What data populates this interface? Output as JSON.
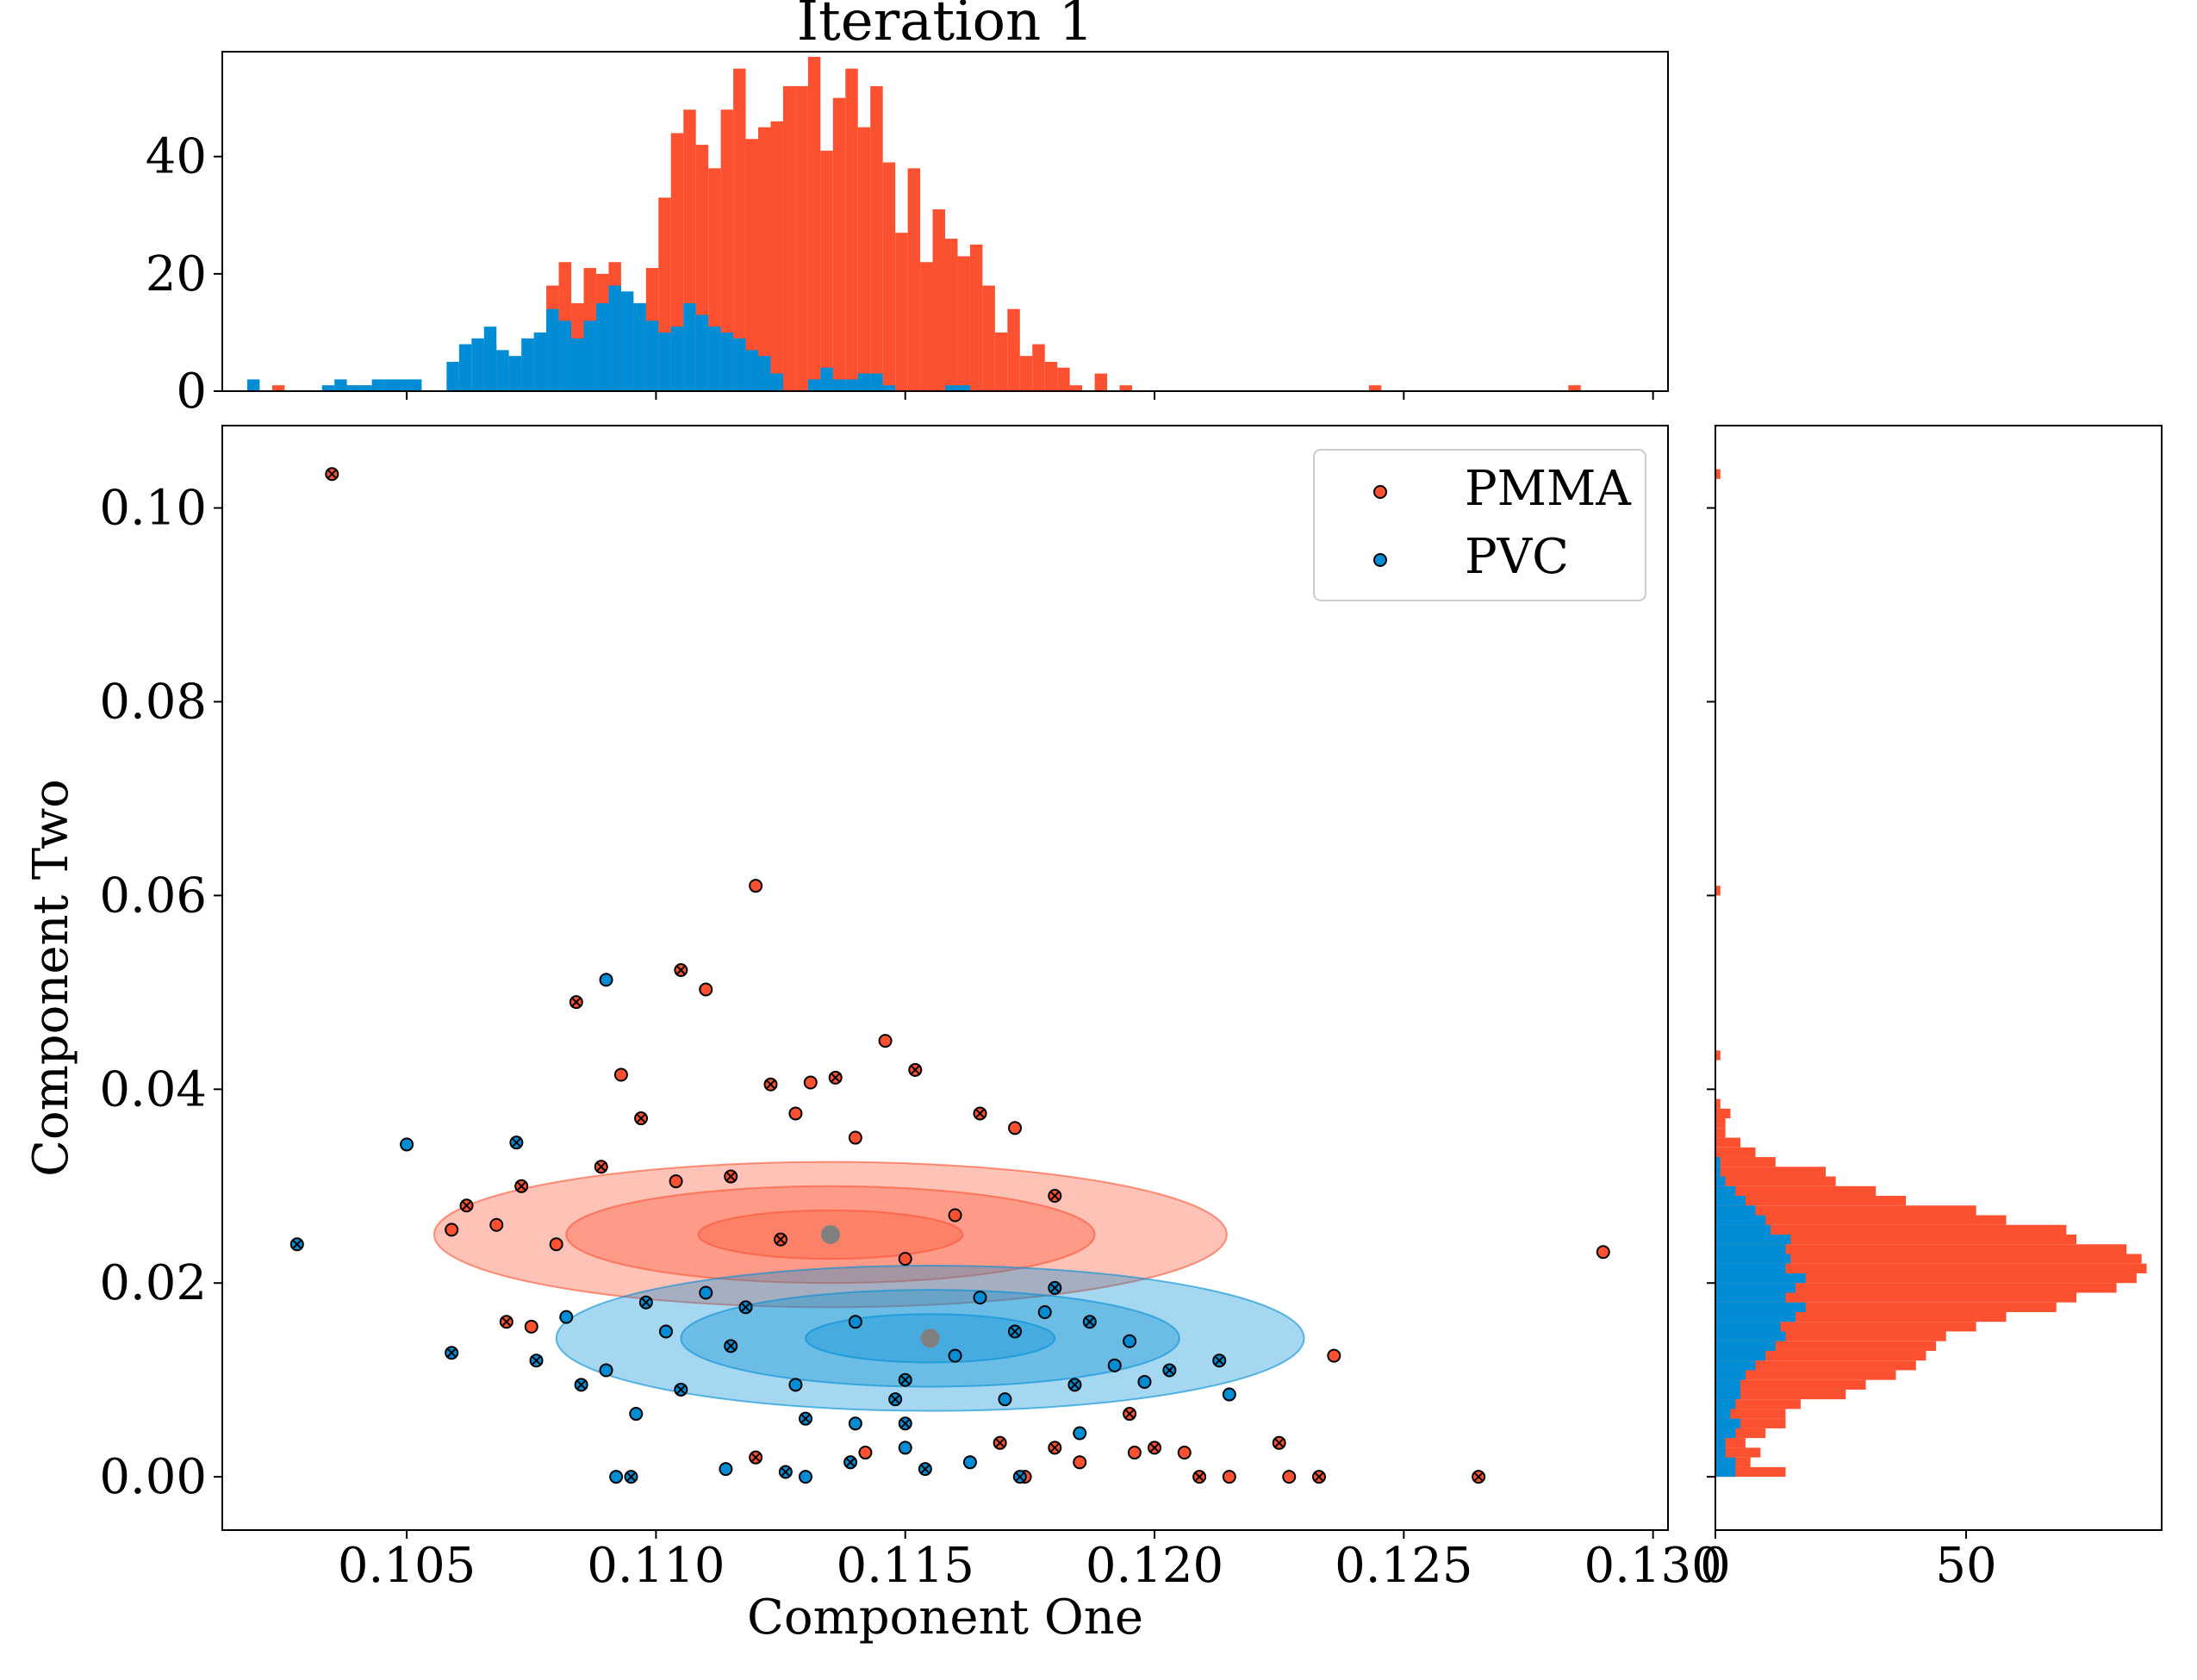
{
  "chart_data": {
    "type": "scatter",
    "title": "Iteration 1",
    "xlabel": "Component One",
    "ylabel": "Component Two",
    "xlim": [
      0.1013,
      0.1303
    ],
    "ylim": [
      -0.0055,
      0.1085
    ],
    "x_ticks": [
      0.105,
      0.11,
      0.115,
      0.12,
      0.125,
      0.13
    ],
    "x_tick_labels": [
      "0.105",
      "0.110",
      "0.115",
      "0.120",
      "0.125",
      "0.130"
    ],
    "y_ticks": [
      0.0,
      0.02,
      0.04,
      0.06,
      0.08,
      0.1
    ],
    "y_tick_labels": [
      "0.00",
      "0.02",
      "0.04",
      "0.06",
      "0.08",
      "0.10"
    ],
    "legend": {
      "placement": "top-right",
      "entries": [
        "PMMA",
        "PVC"
      ]
    },
    "colors": {
      "PMMA": "#fc5130",
      "PVC": "#008dd5",
      "centroid": "#808080"
    },
    "series": [
      {
        "name": "PMMA",
        "mean": [
          0.1135,
          0.025
        ],
        "std": [
          0.00265,
          0.0025
        ],
        "points": [
          [
            0.1035,
            0.1035
          ],
          [
            0.112,
            0.061
          ],
          [
            0.1105,
            0.0523
          ],
          [
            0.111,
            0.0503
          ],
          [
            0.1084,
            0.049
          ],
          [
            0.1146,
            0.045
          ],
          [
            0.1152,
            0.042
          ],
          [
            0.1093,
            0.0415
          ],
          [
            0.1123,
            0.0405
          ],
          [
            0.1131,
            0.0407
          ],
          [
            0.1136,
            0.0412
          ],
          [
            0.1128,
            0.0375
          ],
          [
            0.1097,
            0.037
          ],
          [
            0.129,
            0.0232
          ],
          [
            0.1265,
            0.0
          ],
          [
            0.1236,
            0.0125
          ],
          [
            0.1233,
            0.0
          ],
          [
            0.1227,
            0.0
          ],
          [
            0.1225,
            0.0035
          ],
          [
            0.1215,
            0.0
          ],
          [
            0.1209,
            0.0
          ],
          [
            0.1206,
            0.0025
          ],
          [
            0.12,
            0.003
          ],
          [
            0.1196,
            0.0025
          ],
          [
            0.1195,
            0.0065
          ],
          [
            0.1185,
            0.0015
          ],
          [
            0.118,
            0.003
          ],
          [
            0.1174,
            0.0
          ],
          [
            0.1169,
            0.0035
          ],
          [
            0.1142,
            0.0025
          ],
          [
            0.112,
            0.002
          ],
          [
            0.1075,
            0.0155
          ],
          [
            0.107,
            0.016
          ],
          [
            0.1068,
            0.026
          ],
          [
            0.1062,
            0.028
          ],
          [
            0.1059,
            0.0255
          ],
          [
            0.1073,
            0.03
          ],
          [
            0.108,
            0.024
          ],
          [
            0.1089,
            0.032
          ],
          [
            0.1104,
            0.0305
          ],
          [
            0.1115,
            0.031
          ],
          [
            0.116,
            0.027
          ],
          [
            0.1165,
            0.0375
          ],
          [
            0.1172,
            0.036
          ],
          [
            0.118,
            0.029
          ],
          [
            0.115,
            0.0225
          ],
          [
            0.1125,
            0.0245
          ],
          [
            0.114,
            0.035
          ]
        ]
      },
      {
        "name": "PVC",
        "mean": [
          0.1155,
          0.0143
        ],
        "std": [
          0.0025,
          0.0025
        ],
        "points": [
          [
            0.1028,
            0.024
          ],
          [
            0.105,
            0.0343
          ],
          [
            0.1072,
            0.0345
          ],
          [
            0.109,
            0.0513
          ],
          [
            0.1059,
            0.0128
          ],
          [
            0.1092,
            0.0
          ],
          [
            0.1095,
            0.0
          ],
          [
            0.1114,
            0.0008
          ],
          [
            0.1126,
            0.0005
          ],
          [
            0.113,
            0.0
          ],
          [
            0.1139,
            0.0015
          ],
          [
            0.115,
            0.003
          ],
          [
            0.1154,
            0.0008
          ],
          [
            0.1163,
            0.0015
          ],
          [
            0.1173,
            0.0
          ],
          [
            0.1185,
            0.0045
          ],
          [
            0.115,
            0.0055
          ],
          [
            0.114,
            0.0055
          ],
          [
            0.113,
            0.006
          ],
          [
            0.109,
            0.011
          ],
          [
            0.1085,
            0.0095
          ],
          [
            0.1096,
            0.0065
          ],
          [
            0.1105,
            0.009
          ],
          [
            0.1198,
            0.0098
          ],
          [
            0.1203,
            0.011
          ],
          [
            0.1215,
            0.0085
          ],
          [
            0.1213,
            0.012
          ],
          [
            0.1195,
            0.014
          ],
          [
            0.1187,
            0.016
          ],
          [
            0.1178,
            0.017
          ],
          [
            0.1172,
            0.015
          ],
          [
            0.116,
            0.0125
          ],
          [
            0.115,
            0.01
          ],
          [
            0.114,
            0.016
          ],
          [
            0.1118,
            0.0175
          ],
          [
            0.111,
            0.019
          ],
          [
            0.1098,
            0.018
          ],
          [
            0.1082,
            0.0165
          ],
          [
            0.1076,
            0.012
          ],
          [
            0.1165,
            0.0185
          ],
          [
            0.118,
            0.0195
          ],
          [
            0.1192,
            0.0115
          ],
          [
            0.1184,
            0.0095
          ],
          [
            0.117,
            0.008
          ],
          [
            0.1148,
            0.008
          ],
          [
            0.1128,
            0.0095
          ],
          [
            0.1115,
            0.0135
          ],
          [
            0.1102,
            0.015
          ]
        ]
      }
    ],
    "top_histogram": {
      "bin_edges_start": 0.1013,
      "bin_width": 0.00025,
      "y_ticks": [
        0,
        20,
        40
      ],
      "y_tick_labels": [
        "0",
        "20",
        "40"
      ],
      "ylim": [
        0,
        57
      ],
      "PVC": [
        0,
        0,
        2,
        0,
        0,
        0,
        0,
        0,
        1,
        2,
        1,
        1,
        2,
        2,
        2,
        2,
        0,
        0,
        5,
        8,
        9,
        11,
        7,
        6,
        9,
        10,
        14,
        12,
        9,
        12,
        15,
        18,
        17,
        15,
        12,
        10,
        11,
        15,
        13,
        11,
        10,
        9,
        7,
        6,
        3,
        0,
        0,
        2,
        4,
        2,
        2,
        3,
        3,
        1,
        0,
        0,
        0,
        0,
        1,
        1,
        0,
        0,
        0,
        0,
        0,
        0,
        0,
        0,
        0,
        0,
        0,
        0,
        0,
        0,
        0,
        0,
        0,
        0,
        0,
        0,
        0,
        0,
        0,
        0,
        0,
        0,
        0,
        0,
        0,
        0,
        0,
        0,
        0,
        0,
        0,
        0,
        0,
        0,
        0,
        0,
        0,
        0,
        0,
        0,
        0,
        0,
        0,
        0,
        0,
        0,
        0,
        0,
        0,
        0,
        0,
        0,
        0
      ],
      "PMMA": [
        0,
        0,
        0,
        0,
        1,
        0,
        0,
        0,
        0,
        0,
        1,
        1,
        0,
        0,
        0,
        0,
        0,
        0,
        2,
        0,
        0,
        8,
        5,
        0,
        5,
        8,
        18,
        22,
        15,
        21,
        20,
        22,
        15,
        15,
        21,
        33,
        44,
        48,
        42,
        38,
        48,
        55,
        43,
        45,
        46,
        52,
        52,
        57,
        41,
        50,
        55,
        45,
        52,
        39,
        27,
        38,
        22,
        31,
        26,
        23,
        25,
        18,
        10,
        14,
        6,
        8,
        5,
        4,
        1,
        0,
        3,
        0,
        1,
        0,
        0,
        0,
        0,
        0,
        0,
        0,
        0,
        0,
        0,
        0,
        0,
        0,
        0,
        0,
        0,
        0,
        0,
        0,
        1,
        0,
        0,
        0,
        0,
        0,
        0,
        0,
        0,
        0,
        0,
        0,
        0,
        0,
        0,
        0,
        1,
        0,
        0,
        0,
        0,
        0,
        0,
        0,
        0
      ]
    },
    "right_histogram": {
      "bin_edges_start": 0.0,
      "bin_width": 0.001,
      "x_ticks": [
        0,
        50
      ],
      "x_tick_labels": [
        "0",
        "50"
      ],
      "xlim": [
        0,
        89
      ],
      "PVC": [
        4,
        4,
        2,
        2,
        4,
        5,
        3,
        4,
        5,
        5,
        6,
        8,
        10,
        12,
        14,
        13,
        16,
        18,
        14,
        16,
        18,
        14,
        15,
        14,
        15,
        11,
        10,
        8,
        6,
        4,
        2,
        1,
        1,
        0,
        0,
        0,
        0,
        0,
        0,
        0,
        0,
        0,
        0,
        0,
        0,
        0,
        0,
        0,
        0,
        0,
        0,
        0,
        0,
        0,
        0
      ],
      "PMMA": [
        14,
        7,
        9,
        6,
        10,
        14,
        14,
        17,
        26,
        30,
        36,
        40,
        42,
        44,
        46,
        52,
        58,
        68,
        72,
        80,
        84,
        86,
        85,
        82,
        72,
        70,
        58,
        52,
        38,
        32,
        24,
        22,
        12,
        8,
        5,
        2,
        2,
        3,
        1,
        0,
        0,
        0,
        0,
        1,
        0,
        0,
        0,
        0,
        0,
        0,
        0,
        0,
        0,
        0,
        0,
        0,
        0,
        0,
        0,
        0,
        1,
        0,
        0,
        0,
        0,
        0,
        0,
        0,
        0,
        0,
        0,
        0,
        0,
        0,
        0,
        0,
        0,
        0,
        0,
        0,
        0,
        0,
        0,
        0,
        0,
        0,
        0,
        0,
        0,
        0,
        0,
        0,
        0,
        0,
        0,
        0,
        0,
        0,
        0,
        0,
        0,
        0,
        0,
        1
      ]
    }
  }
}
